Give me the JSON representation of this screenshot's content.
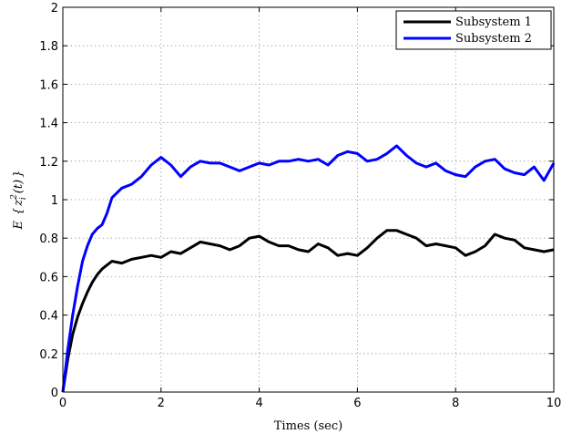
{
  "chart_data": {
    "type": "line",
    "title": "",
    "xlabel": "Times (sec)",
    "ylabel": "E{z_i^2(t)}",
    "xlim": [
      0,
      10
    ],
    "ylim": [
      0,
      2
    ],
    "xticks": [
      0,
      2,
      4,
      6,
      8,
      10
    ],
    "yticks": [
      0,
      0.2,
      0.4,
      0.6,
      0.8,
      1,
      1.2,
      1.4,
      1.6,
      1.8,
      2
    ],
    "xtick_labels": [
      "0",
      "2",
      "4",
      "6",
      "8",
      "10"
    ],
    "ytick_labels": [
      "0",
      "0.2",
      "0.4",
      "0.6",
      "0.8",
      "1",
      "1.2",
      "1.4",
      "1.6",
      "1.8",
      "2"
    ],
    "grid": true,
    "legend_position": "top-right",
    "series": [
      {
        "name": "Subsystem 1",
        "color": "#000000",
        "x": [
          0,
          0.1,
          0.2,
          0.3,
          0.4,
          0.5,
          0.6,
          0.7,
          0.8,
          0.9,
          1.0,
          1.2,
          1.4,
          1.6,
          1.8,
          2.0,
          2.2,
          2.4,
          2.6,
          2.8,
          3.0,
          3.2,
          3.4,
          3.6,
          3.8,
          4.0,
          4.2,
          4.4,
          4.6,
          4.8,
          5.0,
          5.2,
          5.4,
          5.6,
          5.8,
          6.0,
          6.2,
          6.4,
          6.6,
          6.8,
          7.0,
          7.2,
          7.4,
          7.6,
          7.8,
          8.0,
          8.2,
          8.4,
          8.6,
          8.8,
          9.0,
          9.2,
          9.4,
          9.6,
          9.8,
          10.0
        ],
        "y": [
          0,
          0.17,
          0.3,
          0.39,
          0.46,
          0.52,
          0.57,
          0.61,
          0.64,
          0.66,
          0.68,
          0.67,
          0.69,
          0.7,
          0.71,
          0.7,
          0.73,
          0.72,
          0.75,
          0.78,
          0.77,
          0.76,
          0.74,
          0.76,
          0.8,
          0.81,
          0.78,
          0.76,
          0.76,
          0.74,
          0.73,
          0.77,
          0.75,
          0.71,
          0.72,
          0.71,
          0.75,
          0.8,
          0.84,
          0.84,
          0.82,
          0.8,
          0.76,
          0.77,
          0.76,
          0.75,
          0.71,
          0.73,
          0.76,
          0.82,
          0.8,
          0.79,
          0.75,
          0.74,
          0.73,
          0.74
        ]
      },
      {
        "name": "Subsystem 2",
        "color": "#0000ff",
        "x": [
          0,
          0.1,
          0.2,
          0.3,
          0.4,
          0.5,
          0.6,
          0.7,
          0.8,
          0.9,
          1.0,
          1.2,
          1.4,
          1.6,
          1.8,
          2.0,
          2.2,
          2.4,
          2.6,
          2.8,
          3.0,
          3.2,
          3.4,
          3.6,
          3.8,
          4.0,
          4.2,
          4.4,
          4.6,
          4.8,
          5.0,
          5.2,
          5.4,
          5.6,
          5.8,
          6.0,
          6.2,
          6.4,
          6.6,
          6.8,
          7.0,
          7.2,
          7.4,
          7.6,
          7.8,
          8.0,
          8.2,
          8.4,
          8.6,
          8.8,
          9.0,
          9.2,
          9.4,
          9.6,
          9.8,
          10.0
        ],
        "y": [
          0,
          0.22,
          0.4,
          0.55,
          0.68,
          0.76,
          0.82,
          0.85,
          0.87,
          0.93,
          1.01,
          1.06,
          1.08,
          1.12,
          1.18,
          1.22,
          1.18,
          1.12,
          1.17,
          1.2,
          1.19,
          1.19,
          1.17,
          1.15,
          1.17,
          1.19,
          1.18,
          1.2,
          1.2,
          1.21,
          1.2,
          1.21,
          1.18,
          1.23,
          1.25,
          1.24,
          1.2,
          1.21,
          1.24,
          1.28,
          1.23,
          1.19,
          1.17,
          1.19,
          1.15,
          1.13,
          1.12,
          1.17,
          1.2,
          1.21,
          1.16,
          1.14,
          1.13,
          1.17,
          1.1,
          1.19
        ]
      }
    ]
  }
}
